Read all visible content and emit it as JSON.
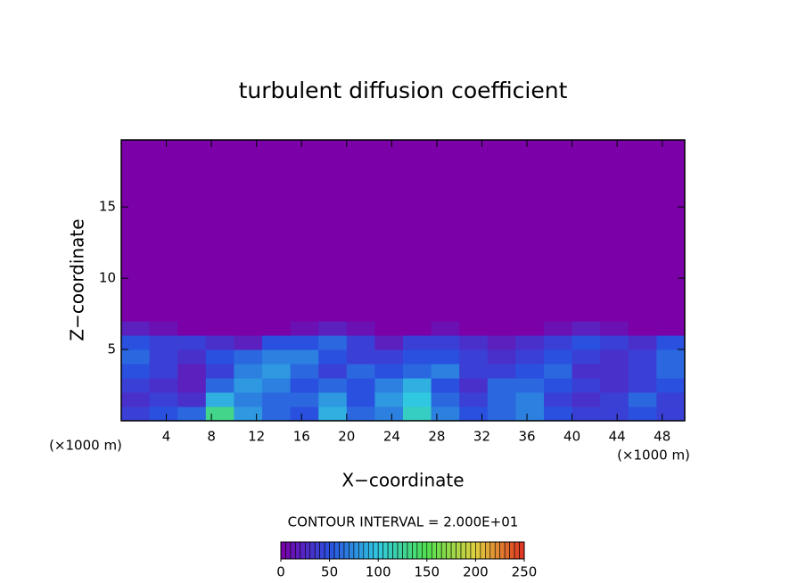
{
  "chart_data": {
    "type": "heatmap",
    "title": "turbulent diffusion coefficient",
    "xlabel": "X−coordinate",
    "ylabel": "Z−coordinate",
    "x_unit_left": "(×1000 m)",
    "x_unit_right": "(×1000 m)",
    "contour_note": "CONTOUR INTERVAL = 2.000E+01",
    "xlim": [
      0,
      50
    ],
    "xticks": [
      4,
      8,
      12,
      16,
      20,
      24,
      28,
      32,
      36,
      40,
      44,
      48
    ],
    "ylim": [
      0,
      19.7
    ],
    "yticks": [
      5,
      10,
      15
    ],
    "x_edges": [
      0,
      2.5,
      5,
      7.5,
      10,
      12.5,
      15,
      17.5,
      20,
      22.5,
      25,
      27.5,
      30,
      32.5,
      35,
      37.5,
      40,
      42.5,
      45,
      47.5,
      50
    ],
    "z_edges": [
      0,
      1,
      2,
      3,
      4,
      5,
      6,
      7,
      19.7
    ],
    "z": [
      [
        40,
        50,
        60,
        130,
        80,
        60,
        50,
        90,
        60,
        70,
        110,
        70,
        50,
        60,
        70,
        50,
        40,
        40,
        50,
        40
      ],
      [
        30,
        40,
        30,
        90,
        70,
        60,
        60,
        80,
        50,
        80,
        100,
        60,
        40,
        60,
        70,
        40,
        30,
        40,
        60,
        40
      ],
      [
        40,
        30,
        20,
        60,
        80,
        70,
        50,
        60,
        50,
        70,
        90,
        50,
        30,
        60,
        60,
        50,
        40,
        30,
        40,
        50
      ],
      [
        50,
        40,
        20,
        40,
        70,
        80,
        60,
        40,
        60,
        50,
        60,
        70,
        40,
        40,
        50,
        60,
        30,
        30,
        40,
        60
      ],
      [
        60,
        40,
        30,
        50,
        60,
        70,
        70,
        50,
        40,
        40,
        50,
        50,
        40,
        30,
        40,
        50,
        40,
        30,
        40,
        60
      ],
      [
        50,
        40,
        40,
        30,
        20,
        50,
        50,
        60,
        40,
        20,
        40,
        40,
        30,
        20,
        30,
        40,
        50,
        40,
        30,
        50
      ],
      [
        20,
        10,
        0,
        0,
        0,
        0,
        10,
        20,
        10,
        0,
        0,
        10,
        0,
        0,
        0,
        10,
        20,
        10,
        0,
        0
      ],
      [
        0,
        0,
        0,
        0,
        0,
        0,
        0,
        0,
        0,
        0,
        0,
        0,
        0,
        0,
        0,
        0,
        0,
        0,
        0,
        0
      ]
    ],
    "clim": [
      0,
      250
    ],
    "cticks": [
      0,
      50,
      100,
      150,
      200,
      250
    ],
    "colormap": [
      "#7b00a8",
      "#2a50e0",
      "#30c8e0",
      "#50e050",
      "#e0d040",
      "#e03020"
    ]
  }
}
